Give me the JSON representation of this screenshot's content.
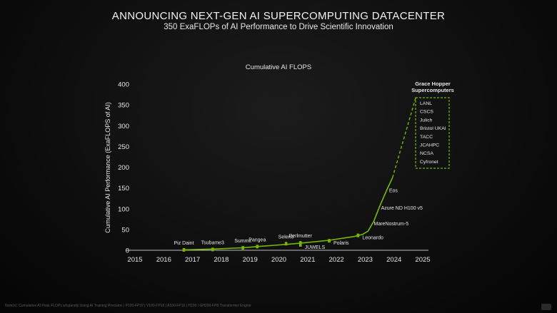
{
  "slide": {
    "title": "ANNOUNCING NEXT-GEN AI SUPERCOMPUTING DATACENTER",
    "subtitle": "350 ExaFLOPs of AI Performance to Drive Scientific Innovation",
    "footnote": "Note(s): Cumulative AI Peak FLOPs w/sparsity Using AI Training Precision | P100-FP32 | V100-FP16 | A100-FP16 | H100 / GH200-FP8 Transformer Engine"
  },
  "chart_data": {
    "type": "line",
    "title": "Cumulative AI FLOPS",
    "xlabel": "",
    "ylabel": "Cumulative AI Performance (ExaFLOPS of AI)",
    "xlim": [
      2015,
      2025
    ],
    "ylim": [
      0,
      400
    ],
    "x_ticks": [
      "2015",
      "2016",
      "2017",
      "2018",
      "2019",
      "2020",
      "2021",
      "2022",
      "2023",
      "2024",
      "2025"
    ],
    "y_ticks": [
      "0",
      "50",
      "100",
      "150",
      "200",
      "250",
      "300",
      "350",
      "400"
    ],
    "line_color": "#76b900",
    "series_solid": {
      "x": [
        2016.7,
        2017.7,
        2018.75,
        2019.25,
        2020.25,
        2020.75,
        2021.75,
        2022.6,
        2022.9,
        2023.1,
        2023.3,
        2023.5,
        2023.75,
        2023.95
      ],
      "y": [
        1,
        3,
        6,
        9,
        14,
        17,
        24,
        33,
        38,
        46,
        70,
        105,
        145,
        175
      ]
    },
    "series_dashed": {
      "x": [
        2023.95,
        2024.75
      ],
      "y": [
        175,
        366
      ]
    },
    "points": [
      {
        "label": "Piz Daint",
        "x": 2016.7,
        "y": 0,
        "pos": "above"
      },
      {
        "label": "Tsubame3",
        "x": 2017.7,
        "y": 1,
        "pos": "above"
      },
      {
        "label": "Summit",
        "x": 2018.75,
        "y": 5,
        "pos": "above"
      },
      {
        "label": "Pangea",
        "x": 2019.25,
        "y": 8,
        "pos": "above"
      },
      {
        "label": "Selene",
        "x": 2020.25,
        "y": 15,
        "pos": "above"
      },
      {
        "label": "Perlmutter",
        "x": 2020.75,
        "y": 17,
        "pos": "above"
      },
      {
        "label": "JUWELS",
        "x": 2020.75,
        "y": 12,
        "pos": "right"
      },
      {
        "label": "Polaris",
        "x": 2021.75,
        "y": 22,
        "pos": "right"
      },
      {
        "label": "Leonardo",
        "x": 2022.75,
        "y": 35,
        "pos": "right"
      }
    ],
    "annotations": [
      {
        "label": "MareNostrum-5",
        "x": 2023.3,
        "y": 60
      },
      {
        "label": "Azure ND H100 v5",
        "x": 2023.55,
        "y": 98
      },
      {
        "label": "Eos",
        "x": 2023.83,
        "y": 140
      }
    ],
    "callout": {
      "title": [
        "Grace Hopper",
        "Supercomputers"
      ],
      "items": [
        "LANL",
        "CSCS",
        "Julich",
        "Bristol UKAI",
        "TACC",
        "JCAHPC",
        "NCSA",
        "Cyfronet"
      ]
    },
    "grid": false
  }
}
